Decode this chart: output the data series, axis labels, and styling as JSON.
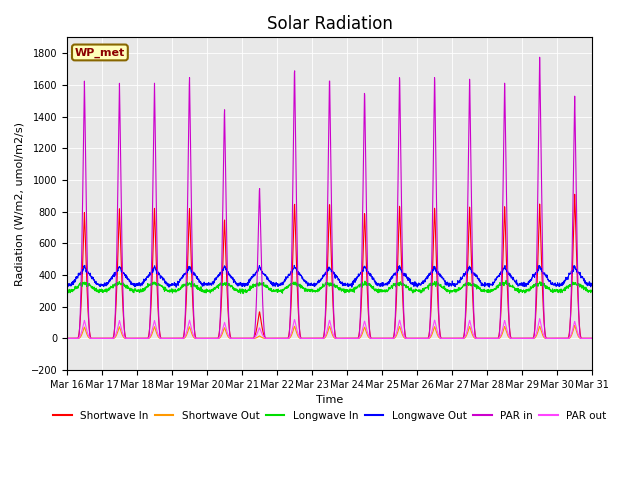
{
  "title": "Solar Radiation",
  "ylabel": "Radiation (W/m2, umol/m2/s)",
  "xlabel": "Time",
  "ylim": [
    -200,
    1900
  ],
  "yticks": [
    -200,
    0,
    200,
    400,
    600,
    800,
    1000,
    1200,
    1400,
    1600,
    1800
  ],
  "start_day": 16,
  "end_day": 31,
  "n_days": 15,
  "colors": {
    "sw_in": "#ff0000",
    "sw_out": "#ff9900",
    "lw_in": "#00dd00",
    "lw_out": "#0000ff",
    "par_in": "#cc00cc",
    "par_out": "#ff44ff"
  },
  "legend_label": "WP_met",
  "bg_color": "#e8e8e8",
  "sw_in_peaks": [
    795,
    820,
    825,
    825,
    755,
    170,
    860,
    860,
    800,
    845,
    830,
    835,
    835,
    850,
    910
  ],
  "par_in_peaks": [
    1625,
    1615,
    1620,
    1660,
    1460,
    960,
    1720,
    1660,
    1575,
    1670,
    1665,
    1650,
    1620,
    1780,
    1530
  ],
  "lw_out_base": 340,
  "lw_in_base": 300,
  "lw_out_day_bump": 80,
  "lw_in_day_bump": 45,
  "sw_out_peak_scale": 0.09,
  "par_out_peak_scale": 0.07,
  "figsize": [
    6.4,
    4.8
  ],
  "dpi": 100
}
